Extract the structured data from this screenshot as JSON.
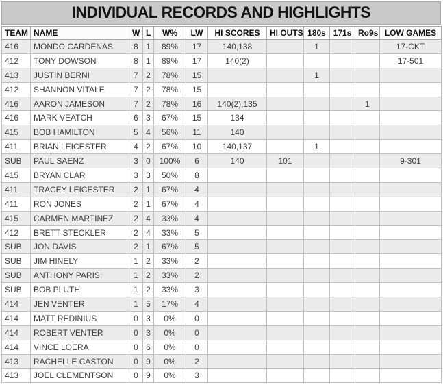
{
  "title": "INDIVIDUAL RECORDS AND HIGHLIGHTS",
  "columns": [
    {
      "key": "team",
      "label": "TEAM",
      "align": "left"
    },
    {
      "key": "name",
      "label": "NAME",
      "align": "left"
    },
    {
      "key": "w",
      "label": "W",
      "align": "center"
    },
    {
      "key": "l",
      "label": "L",
      "align": "center"
    },
    {
      "key": "wpct",
      "label": "W%",
      "align": "center"
    },
    {
      "key": "lw",
      "label": "LW",
      "align": "center"
    },
    {
      "key": "hi_scores",
      "label": "HI SCORES",
      "align": "center"
    },
    {
      "key": "hi_outs",
      "label": "HI OUTS",
      "align": "center"
    },
    {
      "key": "s180",
      "label": "180s",
      "align": "center"
    },
    {
      "key": "s171",
      "label": "171s",
      "align": "center"
    },
    {
      "key": "ro9s",
      "label": "Ro9s",
      "align": "center"
    },
    {
      "key": "low_games",
      "label": "LOW GAMES",
      "align": "center"
    }
  ],
  "rows": [
    [
      "416",
      "MONDO CARDENAS",
      "8",
      "1",
      "89%",
      "17",
      "140,138",
      "",
      "1",
      "",
      "",
      "17-CKT"
    ],
    [
      "412",
      "TONY DOWSON",
      "8",
      "1",
      "89%",
      "17",
      "140(2)",
      "",
      "",
      "",
      "",
      "17-501"
    ],
    [
      "413",
      "JUSTIN BERNI",
      "7",
      "2",
      "78%",
      "15",
      "",
      "",
      "1",
      "",
      "",
      ""
    ],
    [
      "412",
      "SHANNON VITALE",
      "7",
      "2",
      "78%",
      "15",
      "",
      "",
      "",
      "",
      "",
      ""
    ],
    [
      "416",
      "AARON JAMESON",
      "7",
      "2",
      "78%",
      "16",
      "140(2),135",
      "",
      "",
      "",
      "1",
      ""
    ],
    [
      "416",
      "MARK VEATCH",
      "6",
      "3",
      "67%",
      "15",
      "134",
      "",
      "",
      "",
      "",
      ""
    ],
    [
      "415",
      "BOB HAMILTON",
      "5",
      "4",
      "56%",
      "11",
      "140",
      "",
      "",
      "",
      "",
      ""
    ],
    [
      "411",
      "BRIAN LEICESTER",
      "4",
      "2",
      "67%",
      "10",
      "140,137",
      "",
      "1",
      "",
      "",
      ""
    ],
    [
      "SUB",
      "PAUL SAENZ",
      "3",
      "0",
      "100%",
      "6",
      "140",
      "101",
      "",
      "",
      "",
      "9-301"
    ],
    [
      "415",
      "BRYAN CLAR",
      "3",
      "3",
      "50%",
      "8",
      "",
      "",
      "",
      "",
      "",
      ""
    ],
    [
      "411",
      "TRACEY LEICESTER",
      "2",
      "1",
      "67%",
      "4",
      "",
      "",
      "",
      "",
      "",
      ""
    ],
    [
      "411",
      "RON JONES",
      "2",
      "1",
      "67%",
      "4",
      "",
      "",
      "",
      "",
      "",
      ""
    ],
    [
      "415",
      "CARMEN MARTINEZ",
      "2",
      "4",
      "33%",
      "4",
      "",
      "",
      "",
      "",
      "",
      ""
    ],
    [
      "412",
      "BRETT STECKLER",
      "2",
      "4",
      "33%",
      "5",
      "",
      "",
      "",
      "",
      "",
      ""
    ],
    [
      "SUB",
      "JON DAVIS",
      "2",
      "1",
      "67%",
      "5",
      "",
      "",
      "",
      "",
      "",
      ""
    ],
    [
      "SUB",
      "JIM HINELY",
      "1",
      "2",
      "33%",
      "2",
      "",
      "",
      "",
      "",
      "",
      ""
    ],
    [
      "SUB",
      "ANTHONY PARISI",
      "1",
      "2",
      "33%",
      "2",
      "",
      "",
      "",
      "",
      "",
      ""
    ],
    [
      "SUB",
      "BOB PLUTH",
      "1",
      "2",
      "33%",
      "3",
      "",
      "",
      "",
      "",
      "",
      ""
    ],
    [
      "414",
      "JEN VENTER",
      "1",
      "5",
      "17%",
      "4",
      "",
      "",
      "",
      "",
      "",
      ""
    ],
    [
      "414",
      "MATT REDINIUS",
      "0",
      "3",
      "0%",
      "0",
      "",
      "",
      "",
      "",
      "",
      ""
    ],
    [
      "414",
      "ROBERT VENTER",
      "0",
      "3",
      "0%",
      "0",
      "",
      "",
      "",
      "",
      "",
      ""
    ],
    [
      "414",
      "VINCE LOERA",
      "0",
      "6",
      "0%",
      "0",
      "",
      "",
      "",
      "",
      "",
      ""
    ],
    [
      "413",
      "RACHELLE CASTON",
      "0",
      "9",
      "0%",
      "2",
      "",
      "",
      "",
      "",
      "",
      ""
    ],
    [
      "413",
      "JOEL CLEMENTSON",
      "0",
      "9",
      "0%",
      "3",
      "",
      "",
      "",
      "",
      "",
      ""
    ]
  ],
  "colors": {
    "title_bg": "#c9c9c9",
    "header_bg": "#fcfcfc",
    "row_alt_bg": "#ececec",
    "row_bg": "#ffffff",
    "grid": "#c0c0c0",
    "grid_dark": "#a8a8a8",
    "text": "#3e3e3e",
    "heading_text": "#121212"
  }
}
